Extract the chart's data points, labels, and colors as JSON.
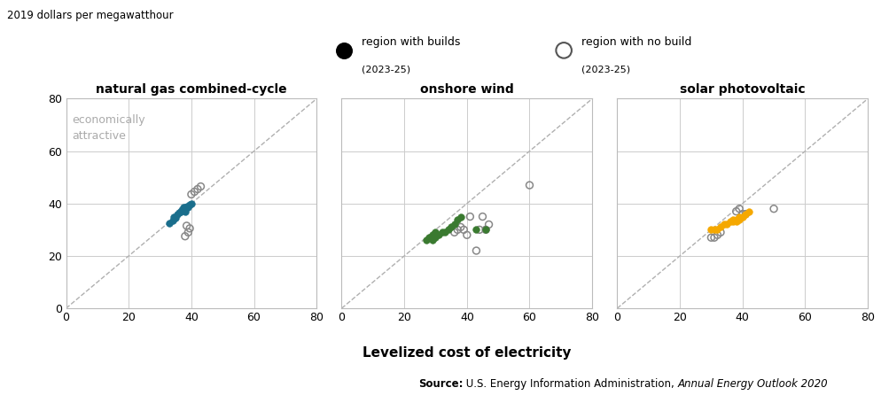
{
  "title_top_left": "2019 dollars per megawatthour",
  "xlabel": "Levelized cost of electricity",
  "legend_filled_label": "region with builds",
  "legend_open_label": "region with no build",
  "legend_sub": "(2023-25)",
  "annotation": "economically\nattractive",
  "xlim": [
    0,
    80
  ],
  "ylim": [
    0,
    80
  ],
  "xticks": [
    0,
    20,
    40,
    60,
    80
  ],
  "yticks": [
    0,
    20,
    40,
    60,
    80
  ],
  "panels": [
    {
      "title": "natural gas combined-cycle",
      "color": "#1a6e8c",
      "filled_x": [
        33.0,
        34.0,
        34.5,
        35.0,
        35.5,
        36.0,
        36.5,
        37.0,
        37.5,
        38.0,
        38.0,
        38.5,
        39.0,
        39.5,
        40.0
      ],
      "filled_y": [
        32.5,
        33.5,
        35.0,
        34.5,
        36.0,
        36.5,
        37.0,
        37.5,
        38.5,
        37.0,
        38.5,
        39.0,
        38.5,
        39.5,
        40.0
      ],
      "open_x": [
        38.0,
        39.0,
        40.0,
        41.0,
        42.0,
        43.0,
        38.5,
        39.5
      ],
      "open_y": [
        27.5,
        29.0,
        43.5,
        44.5,
        45.5,
        46.5,
        31.5,
        30.5
      ]
    },
    {
      "title": "onshore wind",
      "color": "#3a7a30",
      "filled_x": [
        27,
        28,
        29,
        29,
        30,
        30,
        31,
        32,
        33,
        34,
        35,
        36,
        37,
        38,
        43,
        46
      ],
      "filled_y": [
        26,
        27,
        26,
        28,
        27,
        29,
        28,
        29,
        29,
        30,
        31,
        32,
        34,
        35,
        30,
        30
      ],
      "open_x": [
        36,
        37,
        38,
        39,
        40,
        41,
        43,
        44,
        45,
        46,
        47,
        60
      ],
      "open_y": [
        29,
        30,
        31,
        30,
        28,
        35,
        22,
        30,
        35,
        30,
        32,
        47
      ]
    },
    {
      "title": "solar photovoltaic",
      "color": "#f5a800",
      "filled_x": [
        30,
        31,
        32,
        33,
        34,
        35,
        36,
        37,
        37,
        38,
        38,
        39,
        39,
        40,
        41,
        42
      ],
      "filled_y": [
        30,
        30,
        30,
        31,
        32,
        32,
        33,
        33,
        34,
        33,
        34,
        34,
        35,
        35,
        36,
        37
      ],
      "open_x": [
        30,
        31,
        32,
        33,
        38,
        39,
        40,
        41,
        50
      ],
      "open_y": [
        27,
        27,
        28,
        29,
        37,
        38,
        36,
        36,
        38
      ]
    }
  ],
  "source_bold": "Source:",
  "source_normal": " U.S. Energy Information Administration, ",
  "source_italic": "Annual Energy Outlook 2020"
}
